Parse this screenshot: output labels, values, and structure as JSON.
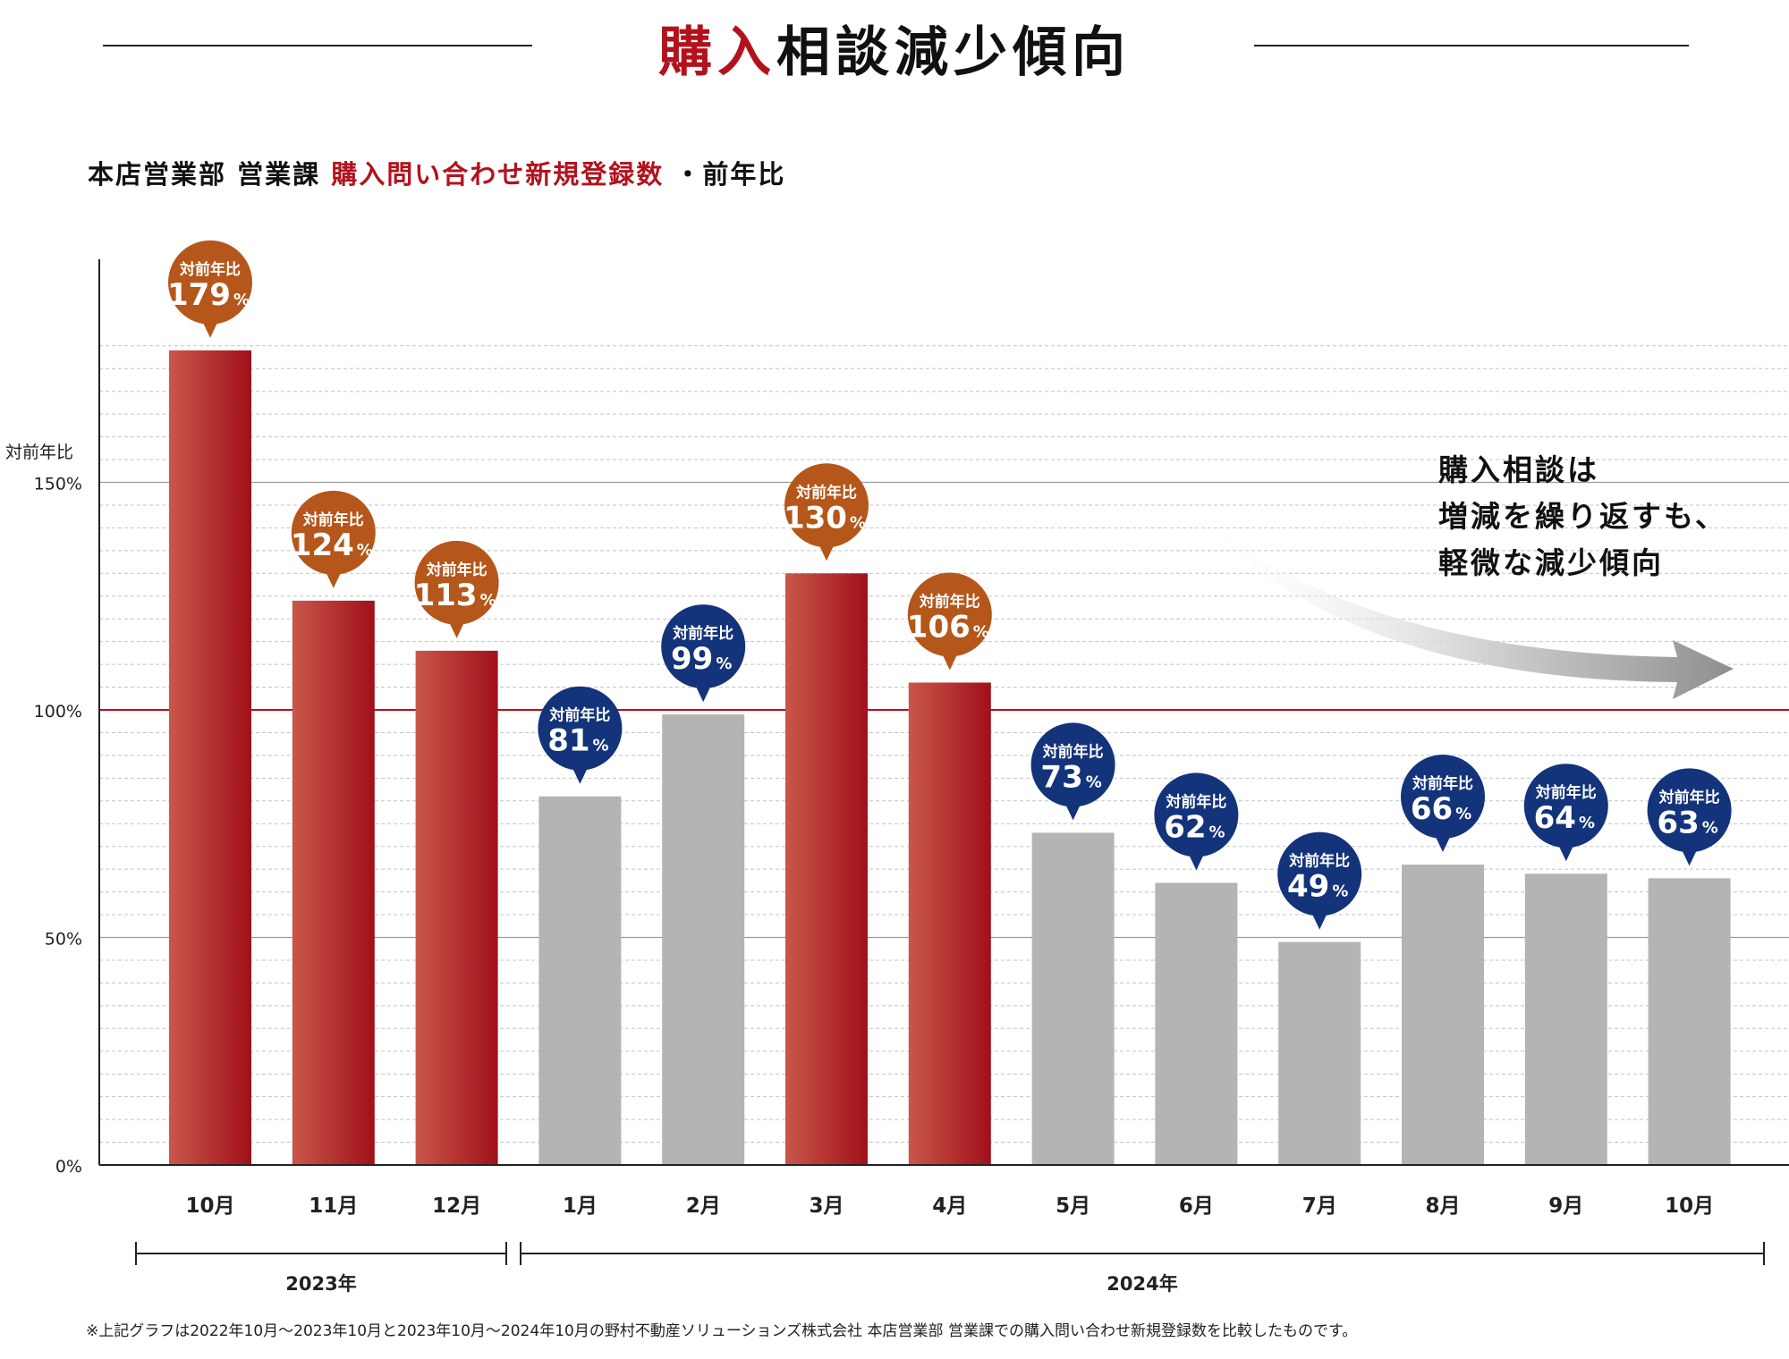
{
  "header": {
    "title_accent": "購入",
    "title_rest": "相談減少傾向"
  },
  "subtitle": {
    "part1": "本店営業部 営業課 ",
    "part2": "購入問い合わせ新規登録数",
    "part3": " ・前年比"
  },
  "colors": {
    "accent_red": "#b3121c",
    "bar_red_light": "#c9574a",
    "bar_red_dark": "#a0101a",
    "bar_gray": "#b4b4b4",
    "bubble_orange": "#b5561a",
    "bubble_navy": "#13337a"
  },
  "chart_data": {
    "type": "bar",
    "ylabel": "対前年比",
    "ylim": [
      0,
      200
    ],
    "y_ticks": [
      "0%",
      "50%",
      "100%",
      "150%"
    ],
    "y_tick_values": [
      0,
      50,
      100,
      150
    ],
    "reference_line": 100,
    "categories": [
      "10月",
      "11月",
      "12月",
      "1月",
      "2月",
      "3月",
      "4月",
      "5月",
      "6月",
      "7月",
      "8月",
      "9月",
      "10月"
    ],
    "values": [
      179,
      124,
      113,
      81,
      99,
      130,
      106,
      73,
      62,
      49,
      66,
      64,
      63
    ],
    "bubble_title": "対前年比",
    "bubble_unit": "%",
    "year_groups": [
      {
        "label": "2023年",
        "start": 0,
        "end": 2
      },
      {
        "label": "2024年",
        "start": 3,
        "end": 12
      }
    ],
    "annotation": [
      "購入相談は",
      "増減を繰り返すも、",
      "軽微な減少傾向"
    ],
    "grid": true
  },
  "footnote": "※上記グラフは2022年10月～2023年10月と2023年10月～2024年10月の野村不動産ソリューションズ株式会社 本店営業部 営業課での購入問い合わせ新規登録数を比較したものです。"
}
